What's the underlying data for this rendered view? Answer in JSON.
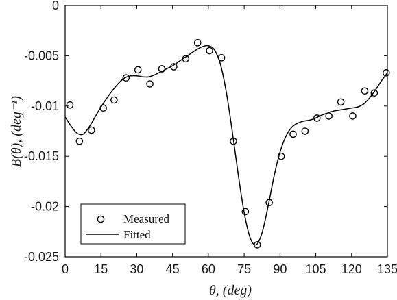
{
  "chart_data": {
    "type": "scatter",
    "xlabel": "θ, (deg)",
    "ylabel": "B(θ), (deg⁻¹)",
    "xlim": [
      0,
      135
    ],
    "ylim": [
      -0.025,
      0
    ],
    "x_ticks": [
      0,
      15,
      30,
      45,
      60,
      75,
      90,
      105,
      120,
      135
    ],
    "y_ticks": [
      0,
      -0.005,
      -0.01,
      -0.015,
      -0.02,
      -0.025
    ],
    "y_tick_labels": [
      "0",
      "-0.005",
      "-0.01",
      "-0.015",
      "-0.02",
      "-0.025"
    ],
    "grid": false,
    "legend_position": "bottom-left",
    "series": [
      {
        "name": "Measured",
        "kind": "markers",
        "marker": "open-circle",
        "color": "#000000",
        "x": [
          2,
          6,
          11,
          16,
          20.5,
          25.5,
          30.5,
          35.5,
          40.5,
          45.5,
          50.5,
          55.5,
          60.5,
          65.5,
          70.5,
          75.5,
          80.5,
          85.5,
          90.5,
          95.5,
          100.5,
          105.5,
          110.5,
          115.5,
          120.5,
          125.5,
          129.5,
          134.5
        ],
        "y": [
          -0.0099,
          -0.0135,
          -0.0124,
          -0.0102,
          -0.0094,
          -0.0072,
          -0.0064,
          -0.0078,
          -0.0063,
          -0.0061,
          -0.0053,
          -0.0037,
          -0.0045,
          -0.0052,
          -0.0135,
          -0.0205,
          -0.0238,
          -0.0196,
          -0.015,
          -0.0128,
          -0.0125,
          -0.0112,
          -0.011,
          -0.0096,
          -0.011,
          -0.0085,
          -0.0087,
          -0.0067
        ]
      },
      {
        "name": "Fitted",
        "kind": "line",
        "color": "#000000",
        "x": [
          0,
          2.5,
          5,
          7.5,
          10,
          12.5,
          15,
          17.5,
          20,
          22.5,
          25,
          27.5,
          30,
          32.5,
          35,
          37.5,
          40,
          42.5,
          45,
          47.5,
          50,
          52.5,
          55,
          57.5,
          60,
          62.5,
          65,
          67.5,
          70,
          72.5,
          75,
          77.5,
          80,
          82.5,
          85,
          87.5,
          90,
          92.5,
          95,
          97.5,
          100,
          102.5,
          105,
          107.5,
          110,
          112.5,
          115,
          117.5,
          120,
          122.5,
          125,
          127.5,
          130,
          132.5,
          135
        ],
        "y": [
          -0.0111,
          -0.012,
          -0.0127,
          -0.0128,
          -0.0121,
          -0.0111,
          -0.0101,
          -0.0092,
          -0.0084,
          -0.0077,
          -0.0072,
          -0.007,
          -0.007,
          -0.0071,
          -0.0071,
          -0.0069,
          -0.0066,
          -0.0063,
          -0.006,
          -0.0056,
          -0.0052,
          -0.0048,
          -0.0044,
          -0.0041,
          -0.004,
          -0.0044,
          -0.0058,
          -0.0086,
          -0.0125,
          -0.0168,
          -0.0206,
          -0.0231,
          -0.0238,
          -0.0226,
          -0.02,
          -0.017,
          -0.0146,
          -0.013,
          -0.0121,
          -0.0117,
          -0.0115,
          -0.0114,
          -0.0112,
          -0.0109,
          -0.0107,
          -0.0105,
          -0.0104,
          -0.0103,
          -0.0102,
          -0.0101,
          -0.0098,
          -0.0092,
          -0.0084,
          -0.0075,
          -0.0067
        ]
      }
    ]
  }
}
